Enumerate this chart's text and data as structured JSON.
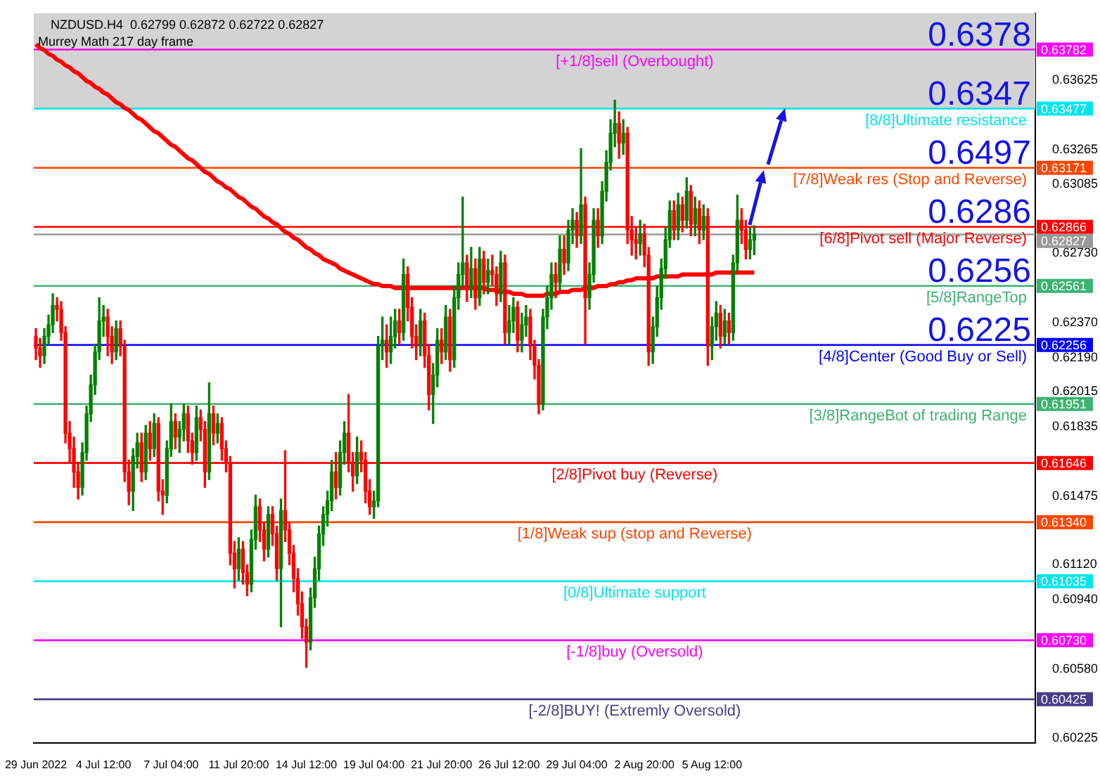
{
  "chart_data": {
    "type": "candlestick",
    "title": "NZDUSD.H4  0.62799 0.62872 0.62722 0.62827",
    "subtitle": "Murrey Math 217 day frame",
    "categories": [
      "29 Jun 2022",
      null,
      null,
      null,
      null,
      null,
      null,
      null,
      null,
      null,
      null,
      null,
      null,
      null,
      null,
      null,
      "4 Jul 12:00",
      null,
      null,
      null,
      null,
      null,
      null,
      null,
      null,
      null,
      null,
      null,
      null,
      null,
      null,
      null,
      "7 Jul 04:00",
      null,
      null,
      null,
      null,
      null,
      null,
      null,
      null,
      null,
      null,
      null,
      null,
      null,
      null,
      null,
      "11 Jul 20:00",
      null,
      null,
      null,
      null,
      null,
      null,
      null,
      null,
      null,
      null,
      null,
      null,
      null,
      null,
      null,
      "14 Jul 12:00",
      null,
      null,
      null,
      null,
      null,
      null,
      null,
      null,
      null,
      null,
      null,
      null,
      null,
      null,
      null,
      "19 Jul 04:00",
      null,
      null,
      null,
      null,
      null,
      null,
      null,
      null,
      null,
      null,
      null,
      null,
      null,
      null,
      null,
      "21 Jul 20:00",
      null,
      null,
      null,
      null,
      null,
      null,
      null,
      null,
      null,
      null,
      null,
      null,
      null,
      null,
      null,
      "26 Jul 12:00",
      null,
      null,
      null,
      null,
      null,
      null,
      null,
      null,
      null,
      null,
      null,
      null,
      null,
      null,
      null,
      "29 Jul 04:00",
      null,
      null,
      null,
      null,
      null,
      null,
      null,
      null,
      null,
      null,
      null,
      null,
      null,
      null,
      null,
      "2 Aug 20:00",
      null,
      null,
      null,
      null,
      null,
      null,
      null,
      null,
      null,
      null,
      null,
      null,
      null,
      null,
      null,
      "5 Aug 12:00",
      null,
      null,
      null,
      null,
      null,
      null,
      null,
      null,
      null,
      null,
      null,
      null,
      null,
      null,
      null,
      null,
      null,
      null,
      null,
      null,
      null,
      null,
      null,
      null,
      null,
      null,
      null,
      null,
      null,
      null,
      null,
      null,
      null,
      null,
      null,
      null,
      null,
      null,
      null,
      null,
      null,
      null,
      null,
      null,
      null,
      null,
      null,
      null,
      null,
      null,
      null,
      null,
      null,
      null,
      null,
      null,
      null,
      null,
      null,
      null,
      null,
      null,
      null,
      null,
      null,
      null,
      null,
      null,
      null,
      null,
      null,
      null,
      null,
      null,
      null,
      null
    ],
    "ohlc": [
      [
        0.623,
        0.6234,
        0.6218,
        0.6224
      ],
      [
        0.6224,
        0.6229,
        0.6214,
        0.622
      ],
      [
        0.622,
        0.6234,
        0.6216,
        0.623
      ],
      [
        0.623,
        0.6241,
        0.6226,
        0.6236
      ],
      [
        0.6236,
        0.6252,
        0.6232,
        0.6246
      ],
      [
        0.6246,
        0.625,
        0.6238,
        0.6244
      ],
      [
        0.6244,
        0.6248,
        0.6228,
        0.6232
      ],
      [
        0.6232,
        0.6235,
        0.6175,
        0.618
      ],
      [
        0.618,
        0.6186,
        0.6165,
        0.6172
      ],
      [
        0.6172,
        0.6178,
        0.6152,
        0.616
      ],
      [
        0.616,
        0.6165,
        0.6146,
        0.6152
      ],
      [
        0.6152,
        0.6175,
        0.6148,
        0.617
      ],
      [
        0.617,
        0.6194,
        0.6166,
        0.619
      ],
      [
        0.619,
        0.621,
        0.6186,
        0.6205
      ],
      [
        0.6205,
        0.6226,
        0.62,
        0.6222
      ],
      [
        0.6222,
        0.625,
        0.6218,
        0.6238
      ],
      [
        0.6238,
        0.6246,
        0.623,
        0.624
      ],
      [
        0.624,
        0.6244,
        0.622,
        0.623
      ],
      [
        0.623,
        0.6235,
        0.6216,
        0.6222
      ],
      [
        0.6222,
        0.6238,
        0.6218,
        0.6234
      ],
      [
        0.6234,
        0.6238,
        0.622,
        0.6225
      ],
      [
        0.6225,
        0.6228,
        0.6155,
        0.616
      ],
      [
        0.616,
        0.6166,
        0.6143,
        0.615
      ],
      [
        0.615,
        0.6172,
        0.614,
        0.6168
      ],
      [
        0.6168,
        0.618,
        0.6162,
        0.6175
      ],
      [
        0.6175,
        0.618,
        0.6155,
        0.616
      ],
      [
        0.616,
        0.6184,
        0.6156,
        0.618
      ],
      [
        0.618,
        0.6186,
        0.6166,
        0.6172
      ],
      [
        0.6172,
        0.619,
        0.6168,
        0.6185
      ],
      [
        0.6185,
        0.6188,
        0.6145,
        0.615
      ],
      [
        0.615,
        0.6156,
        0.6138,
        0.6148
      ],
      [
        0.6148,
        0.6176,
        0.6144,
        0.6172
      ],
      [
        0.6172,
        0.6195,
        0.6168,
        0.6186
      ],
      [
        0.6186,
        0.619,
        0.6172,
        0.6178
      ],
      [
        0.6178,
        0.6186,
        0.617,
        0.6182
      ],
      [
        0.6182,
        0.6195,
        0.6176,
        0.619
      ],
      [
        0.619,
        0.6194,
        0.617,
        0.6176
      ],
      [
        0.6176,
        0.618,
        0.6164,
        0.617
      ],
      [
        0.617,
        0.6194,
        0.6166,
        0.6188
      ],
      [
        0.6188,
        0.6192,
        0.6176,
        0.6182
      ],
      [
        0.6182,
        0.6186,
        0.6152,
        0.616
      ],
      [
        0.616,
        0.6206,
        0.6156,
        0.619
      ],
      [
        0.619,
        0.6194,
        0.6174,
        0.618
      ],
      [
        0.618,
        0.619,
        0.6175,
        0.6185
      ],
      [
        0.6185,
        0.6188,
        0.6166,
        0.6172
      ],
      [
        0.6172,
        0.6176,
        0.616,
        0.6165
      ],
      [
        0.6165,
        0.6168,
        0.6112,
        0.6118
      ],
      [
        0.6118,
        0.6124,
        0.61,
        0.611
      ],
      [
        0.611,
        0.6126,
        0.6104,
        0.612
      ],
      [
        0.612,
        0.6124,
        0.6102,
        0.6108
      ],
      [
        0.6108,
        0.6112,
        0.6096,
        0.6102
      ],
      [
        0.6102,
        0.613,
        0.6098,
        0.6125
      ],
      [
        0.6125,
        0.6148,
        0.612,
        0.6142
      ],
      [
        0.6142,
        0.6146,
        0.6124,
        0.613
      ],
      [
        0.613,
        0.6134,
        0.6114,
        0.612
      ],
      [
        0.612,
        0.6142,
        0.6116,
        0.6138
      ],
      [
        0.6138,
        0.6142,
        0.6122,
        0.6128
      ],
      [
        0.6128,
        0.6132,
        0.6104,
        0.611
      ],
      [
        0.611,
        0.6146,
        0.608,
        0.614
      ],
      [
        0.614,
        0.6171,
        0.6124,
        0.613
      ],
      [
        0.613,
        0.6134,
        0.6112,
        0.6118
      ],
      [
        0.6118,
        0.6122,
        0.6098,
        0.6105
      ],
      [
        0.6105,
        0.611,
        0.6086,
        0.6092
      ],
      [
        0.6092,
        0.6098,
        0.6074,
        0.608
      ],
      [
        0.608,
        0.6084,
        0.6059,
        0.6072
      ],
      [
        0.6072,
        0.61,
        0.6068,
        0.6095
      ],
      [
        0.6095,
        0.6116,
        0.609,
        0.611
      ],
      [
        0.611,
        0.6132,
        0.6104,
        0.6128
      ],
      [
        0.6128,
        0.6142,
        0.6122,
        0.6138
      ],
      [
        0.6138,
        0.615,
        0.6132,
        0.6145
      ],
      [
        0.6145,
        0.6166,
        0.614,
        0.616
      ],
      [
        0.616,
        0.617,
        0.6146,
        0.6152
      ],
      [
        0.6152,
        0.6176,
        0.6148,
        0.617
      ],
      [
        0.617,
        0.6186,
        0.6164,
        0.618
      ],
      [
        0.618,
        0.62,
        0.616,
        0.6165
      ],
      [
        0.6165,
        0.617,
        0.615,
        0.6158
      ],
      [
        0.6158,
        0.6178,
        0.6154,
        0.617
      ],
      [
        0.617,
        0.6176,
        0.616,
        0.6166
      ],
      [
        0.6166,
        0.617,
        0.6144,
        0.615
      ],
      [
        0.615,
        0.6156,
        0.6138,
        0.6142
      ],
      [
        0.6142,
        0.615,
        0.6136,
        0.6145
      ],
      [
        0.6145,
        0.623,
        0.6142,
        0.6225
      ],
      [
        0.6225,
        0.624,
        0.6218,
        0.6228
      ],
      [
        0.6228,
        0.6236,
        0.6214,
        0.6222
      ],
      [
        0.6222,
        0.624,
        0.6216,
        0.623
      ],
      [
        0.623,
        0.6244,
        0.6224,
        0.6238
      ],
      [
        0.6238,
        0.6244,
        0.6226,
        0.6232
      ],
      [
        0.6232,
        0.627,
        0.6228,
        0.6262
      ],
      [
        0.6262,
        0.6266,
        0.6238,
        0.6245
      ],
      [
        0.6245,
        0.625,
        0.6224,
        0.623
      ],
      [
        0.623,
        0.6236,
        0.6218,
        0.6225
      ],
      [
        0.6225,
        0.6244,
        0.622,
        0.6238
      ],
      [
        0.6238,
        0.6242,
        0.6214,
        0.622
      ],
      [
        0.622,
        0.6226,
        0.6192,
        0.62
      ],
      [
        0.62,
        0.6216,
        0.6185,
        0.621
      ],
      [
        0.621,
        0.6234,
        0.6204,
        0.6228
      ],
      [
        0.6228,
        0.6234,
        0.6216,
        0.6222
      ],
      [
        0.6222,
        0.6246,
        0.6218,
        0.624
      ],
      [
        0.624,
        0.6244,
        0.6212,
        0.6218
      ],
      [
        0.6218,
        0.6256,
        0.6214,
        0.625
      ],
      [
        0.625,
        0.6268,
        0.6244,
        0.6262
      ],
      [
        0.6262,
        0.6302,
        0.6256,
        0.6268
      ],
      [
        0.6268,
        0.6272,
        0.6248,
        0.6255
      ],
      [
        0.6255,
        0.6276,
        0.625,
        0.6265
      ],
      [
        0.6265,
        0.627,
        0.6244,
        0.625
      ],
      [
        0.625,
        0.6276,
        0.6246,
        0.627
      ],
      [
        0.627,
        0.6274,
        0.6252,
        0.6258
      ],
      [
        0.6258,
        0.627,
        0.6252,
        0.6264
      ],
      [
        0.6264,
        0.6272,
        0.6256,
        0.6262
      ],
      [
        0.6262,
        0.6266,
        0.6246,
        0.6252
      ],
      [
        0.6252,
        0.6274,
        0.6248,
        0.6268
      ],
      [
        0.6268,
        0.6272,
        0.6226,
        0.6232
      ],
      [
        0.6232,
        0.6246,
        0.6226,
        0.6238
      ],
      [
        0.6238,
        0.625,
        0.6232,
        0.6245
      ],
      [
        0.6245,
        0.6248,
        0.6222,
        0.6228
      ],
      [
        0.6228,
        0.6242,
        0.6222,
        0.6236
      ],
      [
        0.6236,
        0.6246,
        0.623,
        0.624
      ],
      [
        0.624,
        0.6244,
        0.6218,
        0.6225
      ],
      [
        0.6225,
        0.6228,
        0.6208,
        0.6215
      ],
      [
        0.6215,
        0.6218,
        0.619,
        0.6195
      ],
      [
        0.6195,
        0.6244,
        0.6192,
        0.624
      ],
      [
        0.624,
        0.6256,
        0.6234,
        0.625
      ],
      [
        0.625,
        0.6268,
        0.6244,
        0.6262
      ],
      [
        0.6262,
        0.6268,
        0.625,
        0.6258
      ],
      [
        0.6258,
        0.6282,
        0.6254,
        0.6275
      ],
      [
        0.6275,
        0.6282,
        0.6262,
        0.6268
      ],
      [
        0.6268,
        0.629,
        0.6264,
        0.6285
      ],
      [
        0.6285,
        0.6296,
        0.6278,
        0.629
      ],
      [
        0.629,
        0.6294,
        0.6276,
        0.6282
      ],
      [
        0.6282,
        0.6327,
        0.6278,
        0.6298
      ],
      [
        0.6298,
        0.6302,
        0.6226,
        0.625
      ],
      [
        0.625,
        0.6268,
        0.6244,
        0.6262
      ],
      [
        0.6262,
        0.6296,
        0.6258,
        0.629
      ],
      [
        0.629,
        0.6296,
        0.6276,
        0.6282
      ],
      [
        0.6282,
        0.631,
        0.6278,
        0.6305
      ],
      [
        0.6305,
        0.6326,
        0.63,
        0.632
      ],
      [
        0.632,
        0.6342,
        0.6316,
        0.6335
      ],
      [
        0.6335,
        0.6352,
        0.6328,
        0.634
      ],
      [
        0.634,
        0.6346,
        0.6322,
        0.633
      ],
      [
        0.633,
        0.6342,
        0.6324,
        0.6335
      ],
      [
        0.6335,
        0.6338,
        0.6278,
        0.6285
      ],
      [
        0.6285,
        0.6292,
        0.6272,
        0.628
      ],
      [
        0.628,
        0.6286,
        0.627,
        0.6278
      ],
      [
        0.6278,
        0.629,
        0.6272,
        0.6283
      ],
      [
        0.6283,
        0.6288,
        0.6266,
        0.6272
      ],
      [
        0.6272,
        0.6276,
        0.6215,
        0.6222
      ],
      [
        0.6222,
        0.624,
        0.6216,
        0.6235
      ],
      [
        0.6235,
        0.6256,
        0.623,
        0.625
      ],
      [
        0.625,
        0.627,
        0.6244,
        0.6265
      ],
      [
        0.6265,
        0.6286,
        0.626,
        0.628
      ],
      [
        0.628,
        0.63,
        0.6276,
        0.6295
      ],
      [
        0.6295,
        0.63,
        0.628,
        0.6285
      ],
      [
        0.6285,
        0.6304,
        0.628,
        0.6298
      ],
      [
        0.6298,
        0.6302,
        0.6284,
        0.629
      ],
      [
        0.629,
        0.6312,
        0.6286,
        0.6305
      ],
      [
        0.6305,
        0.6308,
        0.6282,
        0.6288
      ],
      [
        0.6288,
        0.6302,
        0.6282,
        0.6296
      ],
      [
        0.6296,
        0.63,
        0.6278,
        0.6285
      ],
      [
        0.6285,
        0.6298,
        0.628,
        0.6292
      ],
      [
        0.6292,
        0.6296,
        0.6215,
        0.6225
      ],
      [
        0.6225,
        0.624,
        0.6218,
        0.6235
      ],
      [
        0.6235,
        0.6248,
        0.6228,
        0.6242
      ],
      [
        0.6242,
        0.6246,
        0.6224,
        0.623
      ],
      [
        0.623,
        0.6244,
        0.6226,
        0.6238
      ],
      [
        0.6238,
        0.6242,
        0.6226,
        0.6232
      ],
      [
        0.6232,
        0.6272,
        0.6228,
        0.6268
      ],
      [
        0.6268,
        0.6303,
        0.6264,
        0.629
      ],
      [
        0.629,
        0.6296,
        0.6278,
        0.6285
      ],
      [
        0.6285,
        0.629,
        0.627,
        0.6275
      ],
      [
        0.6275,
        0.6286,
        0.627,
        0.628
      ],
      [
        0.62799,
        0.62872,
        0.62722,
        0.62827
      ],
      null,
      null,
      null,
      null,
      null,
      null,
      null,
      null,
      null,
      null,
      null,
      null,
      null,
      null,
      null,
      null,
      null,
      null,
      null,
      null,
      null,
      null,
      null,
      null,
      null,
      null,
      null,
      null,
      null,
      null,
      null,
      null,
      null,
      null,
      null,
      null,
      null,
      null,
      null,
      null,
      null,
      null,
      null,
      null,
      null,
      null,
      null,
      null,
      null,
      null,
      null,
      null,
      null,
      null,
      null,
      null,
      null,
      null,
      null,
      null,
      null,
      null,
      null,
      null,
      null,
      null
    ],
    "series": [
      {
        "type": "line",
        "color": "#ff0000",
        "values": [
          0.6381,
          0.6379,
          0.6378,
          0.6376,
          0.6375,
          0.6373,
          0.6372,
          0.637,
          0.6369,
          0.6367,
          0.6366,
          0.6364,
          0.6362,
          0.6361,
          0.6359,
          0.6358,
          0.6356,
          0.6355,
          0.6353,
          0.6351,
          0.635,
          0.6348,
          0.6347,
          0.6345,
          0.6343,
          0.6342,
          0.634,
          0.6338,
          0.6336,
          0.6335,
          0.6333,
          0.6331,
          0.6329,
          0.6328,
          0.6326,
          0.6324,
          0.6322,
          0.6321,
          0.6319,
          0.6317,
          0.6315,
          0.6314,
          0.6312,
          0.631,
          0.6309,
          0.6307,
          0.6306,
          0.6304,
          0.6302,
          0.6301,
          0.6299,
          0.6297,
          0.6296,
          0.6294,
          0.6292,
          0.6291,
          0.6289,
          0.6288,
          0.6286,
          0.6284,
          0.6283,
          0.6281,
          0.628,
          0.6278,
          0.6276,
          0.6275,
          0.6273,
          0.6272,
          0.627,
          0.6269,
          0.6268,
          0.6267,
          0.6265,
          0.6264,
          0.6263,
          0.6262,
          0.6261,
          0.626,
          0.6259,
          0.6258,
          0.6257,
          0.6257,
          0.6256,
          0.6256,
          0.6256,
          0.6255,
          0.6255,
          0.6255,
          0.6255,
          0.6255,
          0.6255,
          0.6255,
          0.6255,
          0.6255,
          0.6255,
          0.6255,
          0.6255,
          0.6255,
          0.6255,
          0.6255,
          0.6255,
          0.6255,
          0.6255,
          0.6255,
          0.6255,
          0.6255,
          0.6255,
          0.6254,
          0.6254,
          0.6254,
          0.6253,
          0.6253,
          0.6253,
          0.6252,
          0.6252,
          0.6252,
          0.6251,
          0.6251,
          0.6251,
          0.6251,
          0.6251,
          0.6252,
          0.6252,
          0.6252,
          0.6253,
          0.6253,
          0.6253,
          0.6254,
          0.6254,
          0.6254,
          0.6255,
          0.6255,
          0.6255,
          0.6256,
          0.6256,
          0.6256,
          0.6257,
          0.6257,
          0.6258,
          0.6258,
          0.6259,
          0.6259,
          0.626,
          0.626,
          0.626,
          0.626,
          0.626,
          0.6261,
          0.6261,
          0.6261,
          0.6261,
          0.6261,
          0.6261,
          0.6262,
          0.6262,
          0.6262,
          0.6262,
          0.6262,
          0.6262,
          0.6262,
          0.6262,
          0.6263,
          0.6263,
          0.6263,
          0.6263,
          0.6263,
          0.6263,
          0.6263,
          0.6263,
          0.6263,
          0.6263,
          null,
          null,
          null,
          null,
          null,
          null,
          null,
          null,
          null,
          null,
          null,
          null,
          null,
          null,
          null,
          null,
          null,
          null,
          null,
          null,
          null,
          null,
          null,
          null,
          null,
          null,
          null,
          null,
          null,
          null,
          null,
          null,
          null,
          null,
          null,
          null,
          null,
          null,
          null,
          null,
          null,
          null,
          null,
          null,
          null,
          null,
          null,
          null,
          null,
          null,
          null,
          null,
          null,
          null,
          null,
          null,
          null,
          null,
          null,
          null,
          null,
          null,
          null,
          null,
          null,
          null
        ]
      }
    ],
    "ylim": [
      0.602,
      0.6397
    ],
    "y2lim": [
      0.602,
      0.6397
    ],
    "y2ticks": [
      0.63782,
      0.63477,
      0.63171,
      0.62866,
      0.62827,
      0.62561,
      0.62256,
      0.61951,
      0.61646,
      {
        "value": 0.6134,
        "label": "0.61340"
      },
      0.61035,
      {
        "value": 0.6073,
        "label": "0.60730"
      },
      0.60425
    ],
    "yticks": [
      0.63625,
      0.63265,
      0.63085,
      {
        "value": 0.6273,
        "label": "0.62730"
      },
      {
        "value": 0.6237,
        "label": "0.62370"
      },
      {
        "value": 0.6219,
        "label": "0.62190"
      },
      0.62015,
      0.61835,
      0.61475,
      {
        "value": 0.6112,
        "label": "0.61120"
      },
      {
        "value": 0.6094,
        "label": "0.60940"
      },
      {
        "value": 0.6058,
        "label": "0.60580"
      },
      0.60225
    ],
    "bands": [
      {
        "axis": "y",
        "from": 0.63477,
        "to": 0.6397,
        "color": "#d3d3d3"
      }
    ],
    "ref_lines": [
      {
        "axis": "y",
        "value": 0.63782,
        "label": "[+1/8]sell (Overbought)",
        "color": "#ff00ff"
      },
      {
        "axis": "y",
        "value": 0.63477,
        "label": "[8/8]Ultimate resistance",
        "color": "#00e5ee"
      },
      {
        "axis": "y",
        "value": 0.63171,
        "label": "[7/8]Weak res (Stop and Reverse)",
        "color": "#ff4500"
      },
      {
        "axis": "y",
        "value": 0.62866,
        "label": "[6/8]Pivot sell (Major Reverse)",
        "color": "#ff0000"
      },
      {
        "axis": "y",
        "value": 0.62827,
        "label": null,
        "color": "#999999"
      },
      {
        "axis": "y",
        "value": 0.62561,
        "label": "[5/8]RangeTop",
        "color": "#3cb371"
      },
      {
        "axis": "y",
        "value": 0.62256,
        "label": "[4/8]Center (Good Buy or Sell)",
        "color": "#0000ff"
      },
      {
        "axis": "y",
        "value": 0.61951,
        "label": "[3/8]RangeBot of trading Range",
        "color": "#3cb371"
      },
      {
        "axis": "y",
        "value": 0.61646,
        "label": "[2/8]Pivot buy (Reverse)",
        "color": "#ff0000"
      },
      {
        "axis": "y",
        "value": 0.6134,
        "label": "[1/8]Weak sup (stop and Reverse)",
        "color": "#ff4500"
      },
      {
        "axis": "y",
        "value": 0.61035,
        "label": "[0/8]Ultimate support",
        "color": "#00e5ee"
      },
      {
        "axis": "y",
        "value": 0.6073,
        "label": "[-1/8]buy (Oversold)",
        "color": "#ff00ff"
      },
      {
        "axis": "y",
        "value": 0.60425,
        "label": "[-2/8]BUY! (Extremly Oversold)",
        "color": "#483d8b"
      }
    ],
    "annotations": [
      {
        "text": "0.6378",
        "y": 0.63782
      },
      {
        "text": "0.6347",
        "y": 0.63477
      },
      {
        "text": "0.6497",
        "y": 0.63171
      },
      {
        "text": "0.6286",
        "y": 0.62866
      },
      {
        "text": "0.6256",
        "y": 0.62561
      },
      {
        "text": "0.6225",
        "y": 0.62256
      }
    ]
  }
}
